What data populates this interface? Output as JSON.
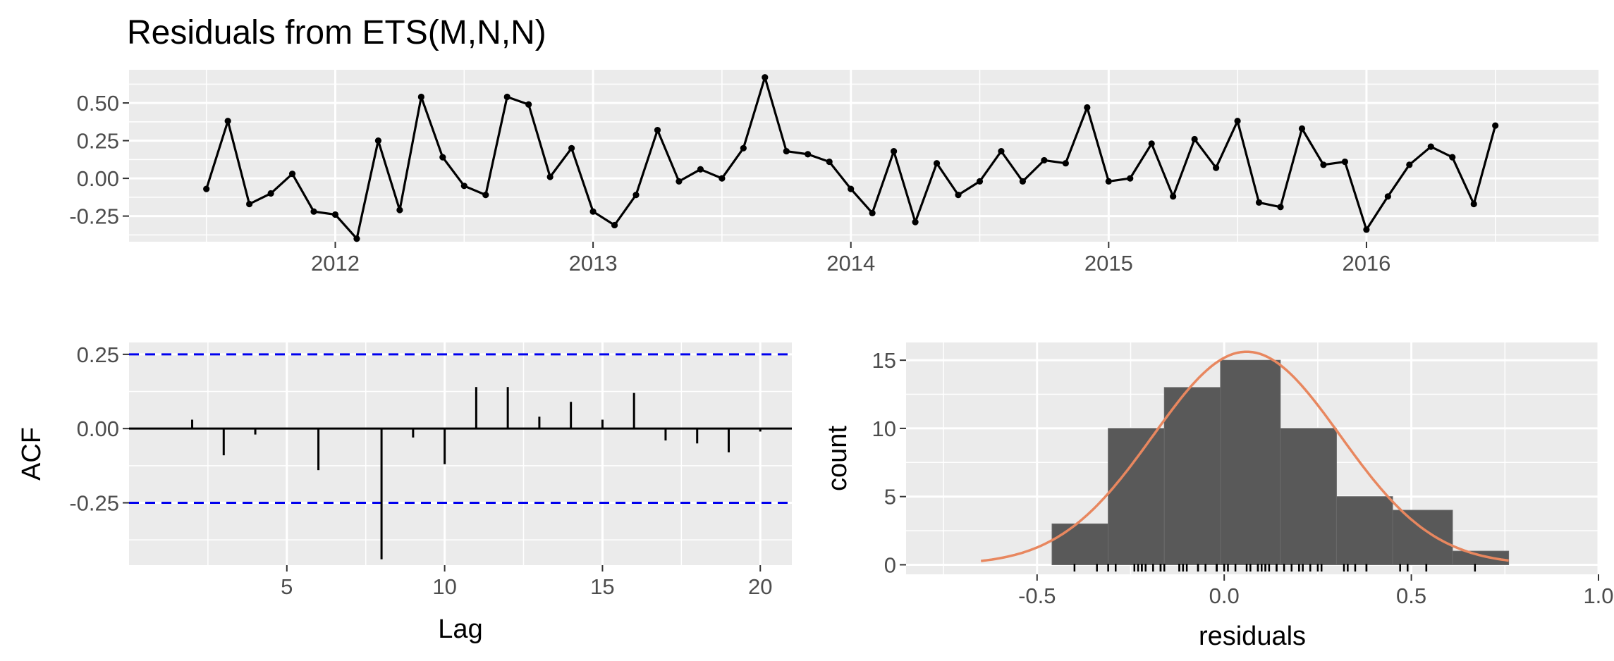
{
  "title": "Residuals from ETS(M,N,N)",
  "colors": {
    "panel": "#ebebeb",
    "grid_major": "#ffffff",
    "line": "#000000",
    "bar": "#595959",
    "bound": "#0000ee",
    "density": "#e8875f"
  },
  "chart_data": [
    {
      "type": "line",
      "name": "residuals-time-series",
      "title": "Residuals from ETS(M,N,N)",
      "xlabel": "",
      "ylabel": "",
      "x_ticks": [
        2012,
        2013,
        2014,
        2015,
        2016
      ],
      "y_ticks": [
        "-0.25",
        "0.00",
        "0.25",
        "0.50"
      ],
      "xlim": [
        2011.2,
        2016.9
      ],
      "ylim": [
        -0.42,
        0.72
      ],
      "x_start": 2011.5,
      "x_step": 0.08333,
      "values": [
        -0.07,
        0.38,
        -0.17,
        -0.1,
        0.03,
        -0.22,
        -0.24,
        -0.4,
        0.25,
        -0.21,
        0.54,
        0.14,
        -0.05,
        -0.11,
        0.54,
        0.49,
        0.01,
        0.2,
        -0.22,
        -0.31,
        -0.11,
        0.32,
        -0.02,
        0.06,
        0.0,
        0.2,
        0.67,
        0.18,
        0.16,
        0.11,
        -0.07,
        -0.23,
        0.18,
        -0.29,
        0.1,
        -0.11,
        -0.02,
        0.18,
        -0.02,
        0.12,
        0.1,
        0.47,
        -0.02,
        0.0,
        0.23,
        -0.12,
        0.26,
        0.07,
        0.38,
        -0.16,
        -0.19,
        0.33,
        0.09,
        0.11,
        -0.34,
        -0.12,
        0.09,
        0.21,
        0.14,
        -0.17,
        0.35
      ]
    },
    {
      "type": "bar",
      "name": "acf",
      "xlabel": "Lag",
      "ylabel": "ACF",
      "x_ticks": [
        5,
        10,
        15,
        20
      ],
      "y_ticks": [
        "-0.25",
        "0.00",
        "0.25"
      ],
      "xlim": [
        0.0,
        21.0
      ],
      "ylim": [
        -0.46,
        0.29
      ],
      "lags": [
        1,
        2,
        3,
        4,
        5,
        6,
        7,
        8,
        9,
        10,
        11,
        12,
        13,
        14,
        15,
        16,
        17,
        18,
        19,
        20
      ],
      "values": [
        0.0,
        0.03,
        -0.09,
        -0.02,
        0.0,
        -0.14,
        0.0,
        -0.44,
        -0.03,
        -0.12,
        0.14,
        0.14,
        0.04,
        0.09,
        0.03,
        0.12,
        -0.04,
        -0.05,
        -0.08,
        -0.01
      ],
      "bounds": [
        0.25,
        -0.25
      ]
    },
    {
      "type": "bar",
      "name": "residual-histogram",
      "xlabel": "residuals",
      "ylabel": "count",
      "x_ticks": [
        "-0.5",
        "0.0",
        "0.5",
        "1.0"
      ],
      "y_ticks": [
        0,
        5,
        10,
        15
      ],
      "xlim": [
        -0.85,
        1.0
      ],
      "ylim": [
        -0.7,
        16.3
      ],
      "bins": [
        {
          "from": -0.46,
          "to": -0.31,
          "count": 3
        },
        {
          "from": -0.31,
          "to": -0.16,
          "count": 10
        },
        {
          "from": -0.16,
          "to": -0.01,
          "count": 13
        },
        {
          "from": -0.01,
          "to": 0.15,
          "count": 15
        },
        {
          "from": 0.15,
          "to": 0.3,
          "count": 10
        },
        {
          "from": 0.3,
          "to": 0.45,
          "count": 5
        },
        {
          "from": 0.45,
          "to": 0.61,
          "count": 4
        },
        {
          "from": 0.61,
          "to": 0.76,
          "count": 1
        }
      ],
      "density": {
        "mean": 0.06,
        "sd": 0.25,
        "scale": 9.79,
        "from": -0.65,
        "to": 0.76
      },
      "rug": [
        -0.4,
        -0.34,
        -0.31,
        -0.29,
        -0.24,
        -0.23,
        -0.22,
        -0.22,
        -0.21,
        -0.19,
        -0.17,
        -0.17,
        -0.16,
        -0.12,
        -0.12,
        -0.11,
        -0.11,
        -0.11,
        -0.1,
        -0.07,
        -0.07,
        -0.05,
        -0.02,
        -0.02,
        -0.02,
        -0.02,
        0.0,
        0.0,
        0.01,
        0.03,
        0.06,
        0.07,
        0.09,
        0.09,
        0.1,
        0.1,
        0.11,
        0.11,
        0.12,
        0.14,
        0.14,
        0.16,
        0.18,
        0.18,
        0.18,
        0.2,
        0.2,
        0.21,
        0.23,
        0.25,
        0.26,
        0.32,
        0.33,
        0.35,
        0.38,
        0.38,
        0.47,
        0.49,
        0.54,
        0.54,
        0.67
      ]
    }
  ]
}
